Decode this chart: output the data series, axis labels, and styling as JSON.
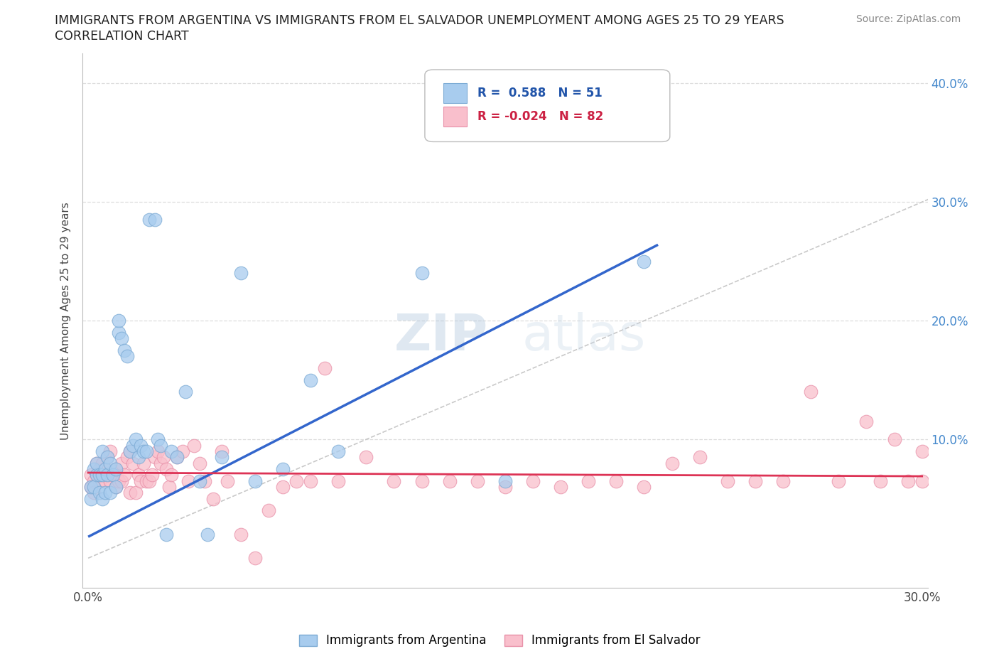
{
  "title_line1": "IMMIGRANTS FROM ARGENTINA VS IMMIGRANTS FROM EL SALVADOR UNEMPLOYMENT AMONG AGES 25 TO 29 YEARS",
  "title_line2": "CORRELATION CHART",
  "source_text": "Source: ZipAtlas.com",
  "ylabel": "Unemployment Among Ages 25 to 29 years",
  "xlim": [
    -0.002,
    0.302
  ],
  "ylim": [
    -0.025,
    0.425
  ],
  "xticks": [
    0.0,
    0.05,
    0.1,
    0.15,
    0.2,
    0.25,
    0.3
  ],
  "xtick_labels": [
    "0.0%",
    "",
    "",
    "",
    "",
    "",
    "30.0%"
  ],
  "yticks": [
    0.0,
    0.1,
    0.2,
    0.3,
    0.4
  ],
  "ytick_labels": [
    "",
    "10.0%",
    "20.0%",
    "30.0%",
    "40.0%"
  ],
  "argentina_color": "#A8CCEE",
  "argentina_edge_color": "#7BAAD4",
  "el_salvador_color": "#F9BFCC",
  "el_salvador_edge_color": "#E890A8",
  "argentina_line_color": "#3366CC",
  "el_salvador_line_color": "#DD3355",
  "R_argentina": 0.588,
  "N_argentina": 51,
  "R_el_salvador": -0.024,
  "N_el_salvador": 82,
  "watermark_zip": "ZIP",
  "watermark_atlas": "atlas",
  "argentina_x": [
    0.001,
    0.001,
    0.002,
    0.002,
    0.003,
    0.003,
    0.004,
    0.004,
    0.005,
    0.005,
    0.005,
    0.006,
    0.006,
    0.007,
    0.007,
    0.008,
    0.008,
    0.009,
    0.01,
    0.01,
    0.011,
    0.011,
    0.012,
    0.013,
    0.014,
    0.015,
    0.016,
    0.017,
    0.018,
    0.019,
    0.02,
    0.021,
    0.022,
    0.024,
    0.025,
    0.026,
    0.028,
    0.03,
    0.032,
    0.035,
    0.04,
    0.043,
    0.048,
    0.055,
    0.06,
    0.07,
    0.08,
    0.09,
    0.12,
    0.15,
    0.2
  ],
  "argentina_y": [
    0.05,
    0.06,
    0.06,
    0.075,
    0.07,
    0.08,
    0.055,
    0.07,
    0.05,
    0.07,
    0.09,
    0.055,
    0.075,
    0.07,
    0.085,
    0.055,
    0.08,
    0.07,
    0.06,
    0.075,
    0.19,
    0.2,
    0.185,
    0.175,
    0.17,
    0.09,
    0.095,
    0.1,
    0.085,
    0.095,
    0.09,
    0.09,
    0.285,
    0.285,
    0.1,
    0.095,
    0.02,
    0.09,
    0.085,
    0.14,
    0.065,
    0.02,
    0.085,
    0.24,
    0.065,
    0.075,
    0.15,
    0.09,
    0.24,
    0.065,
    0.25
  ],
  "el_salvador_x": [
    0.001,
    0.001,
    0.002,
    0.002,
    0.003,
    0.003,
    0.004,
    0.004,
    0.005,
    0.005,
    0.006,
    0.006,
    0.007,
    0.007,
    0.008,
    0.008,
    0.009,
    0.01,
    0.01,
    0.011,
    0.012,
    0.012,
    0.013,
    0.014,
    0.015,
    0.015,
    0.016,
    0.017,
    0.018,
    0.019,
    0.02,
    0.021,
    0.022,
    0.023,
    0.024,
    0.025,
    0.026,
    0.027,
    0.028,
    0.029,
    0.03,
    0.032,
    0.034,
    0.036,
    0.038,
    0.04,
    0.042,
    0.045,
    0.048,
    0.05,
    0.055,
    0.06,
    0.065,
    0.07,
    0.075,
    0.08,
    0.085,
    0.09,
    0.1,
    0.11,
    0.12,
    0.13,
    0.14,
    0.15,
    0.16,
    0.17,
    0.18,
    0.19,
    0.2,
    0.21,
    0.22,
    0.23,
    0.24,
    0.25,
    0.26,
    0.27,
    0.28,
    0.285,
    0.29,
    0.295,
    0.3,
    0.3
  ],
  "el_salvador_y": [
    0.07,
    0.06,
    0.065,
    0.055,
    0.07,
    0.08,
    0.065,
    0.075,
    0.07,
    0.08,
    0.065,
    0.075,
    0.07,
    0.085,
    0.065,
    0.09,
    0.07,
    0.06,
    0.075,
    0.065,
    0.065,
    0.08,
    0.07,
    0.085,
    0.09,
    0.055,
    0.08,
    0.055,
    0.07,
    0.065,
    0.08,
    0.065,
    0.065,
    0.07,
    0.085,
    0.09,
    0.08,
    0.085,
    0.075,
    0.06,
    0.07,
    0.085,
    0.09,
    0.065,
    0.095,
    0.08,
    0.065,
    0.05,
    0.09,
    0.065,
    0.02,
    0.0,
    0.04,
    0.06,
    0.065,
    0.065,
    0.16,
    0.065,
    0.085,
    0.065,
    0.065,
    0.065,
    0.065,
    0.06,
    0.065,
    0.06,
    0.065,
    0.065,
    0.06,
    0.08,
    0.085,
    0.065,
    0.065,
    0.065,
    0.14,
    0.065,
    0.115,
    0.065,
    0.1,
    0.065,
    0.065,
    0.09
  ]
}
